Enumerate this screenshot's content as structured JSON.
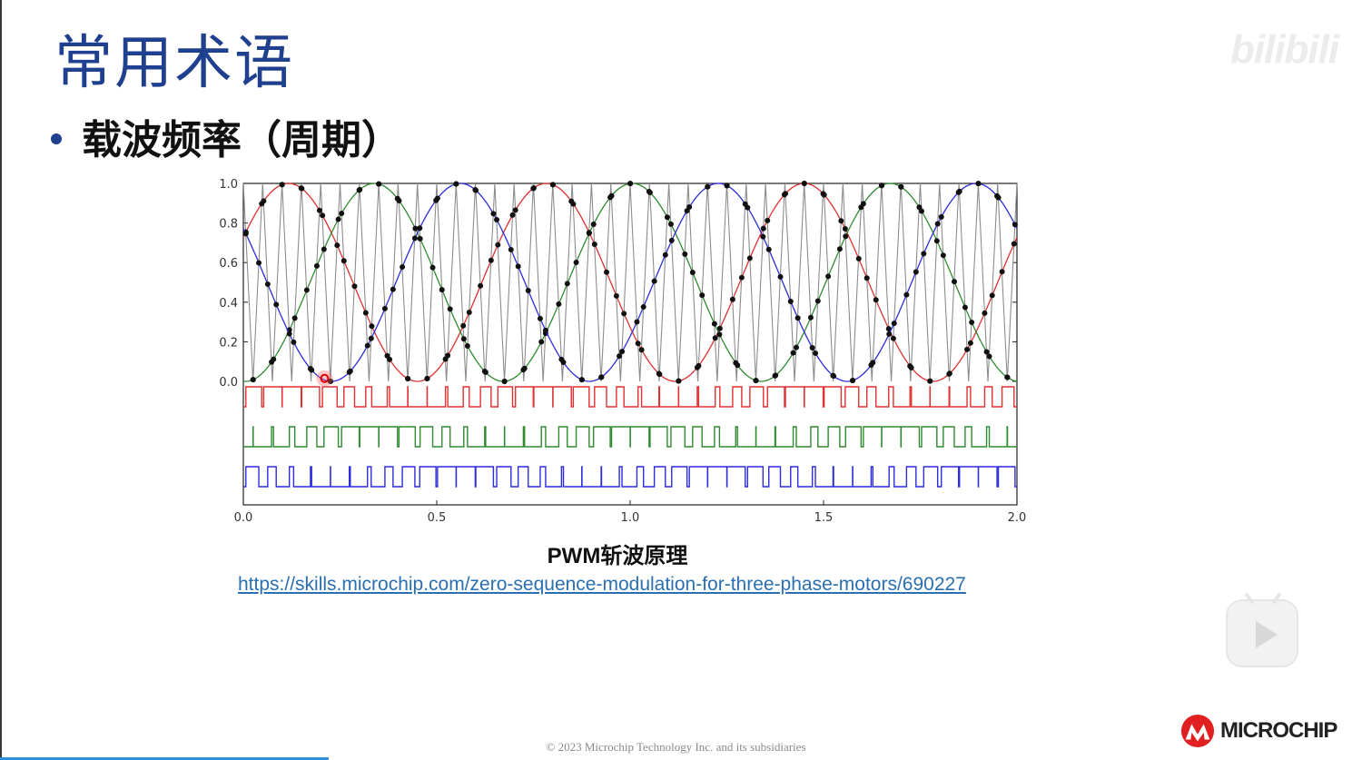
{
  "slide": {
    "title": "常用术语",
    "bullet": "载波频率（周期）",
    "caption": "PWM斩波原理",
    "link": "https://skills.microchip.com/zero-sequence-modulation-for-three-phase-motors/690227",
    "footer": "© 2023 Microchip Technology Inc. and its subsidiaries",
    "logo_text": "MICROCHIP",
    "watermark": "bilibili"
  },
  "icons": {
    "player": "play-icon",
    "logo": "microchip-logo-icon"
  },
  "colors": {
    "title": "#1f3f8f",
    "phase_a": "#e03030",
    "phase_b": "#2e8b2e",
    "phase_c": "#2c2cdd",
    "carrier": "#8c8c8c",
    "link": "#2a6fb0"
  },
  "chart_data": {
    "type": "line",
    "x_range": [
      0.0,
      2.0
    ],
    "y_range": [
      0.0,
      1.0
    ],
    "x_ticks": [
      "0.0",
      "0.5",
      "1.0",
      "1.5",
      "2.0"
    ],
    "y_ticks": [
      "1.0",
      "0.8",
      "0.6",
      "0.4",
      "0.2",
      "0.0"
    ],
    "carrier": {
      "type": "triangle",
      "periods": 40
    },
    "sine_cycles": 3,
    "series": [
      {
        "phase_deg": 0,
        "color": "#e03030"
      },
      {
        "phase_deg": -120,
        "color": "#2e8b2e"
      },
      {
        "phase_deg": 120,
        "color": "#2c2cdd"
      }
    ]
  }
}
